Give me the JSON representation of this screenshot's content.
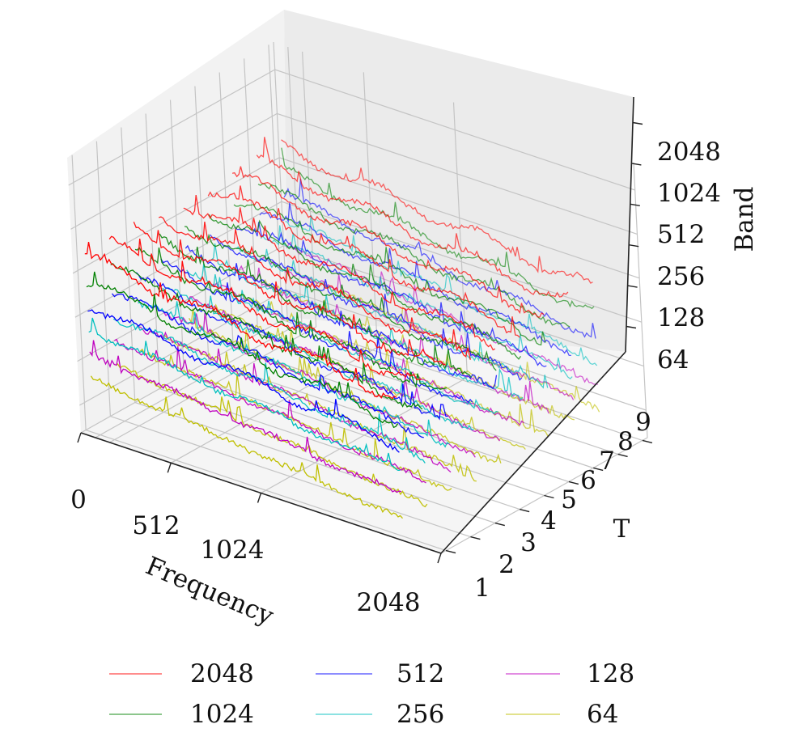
{
  "chart_data": {
    "type": "line",
    "projection": "3d",
    "title": "",
    "axes": {
      "x": {
        "label": "Frequency",
        "ticks": [
          "0",
          "512",
          "1024",
          "2048"
        ],
        "range": [
          0,
          2048
        ]
      },
      "y": {
        "label": "T",
        "ticks": [
          "1",
          "2",
          "3",
          "4",
          "5",
          "6",
          "7",
          "8",
          "9"
        ],
        "range": [
          1,
          9
        ]
      },
      "z": {
        "label": "Band",
        "ticks": [
          "64",
          "128",
          "256",
          "512",
          "1024",
          "2048"
        ]
      }
    },
    "grid": true,
    "legend": {
      "placement": "bottom",
      "columns": 3
    },
    "series": [
      {
        "name": "2048",
        "color": "#ff0000",
        "band_level": 5
      },
      {
        "name": "1024",
        "color": "#008000",
        "band_level": 4
      },
      {
        "name": "512",
        "color": "#0000ff",
        "band_level": 3
      },
      {
        "name": "256",
        "color": "#00bfbf",
        "band_level": 2
      },
      {
        "name": "128",
        "color": "#bf00bf",
        "band_level": 1
      },
      {
        "name": "64",
        "color": "#bfbf00",
        "band_level": 0
      }
    ],
    "time_steps": [
      1,
      2,
      3,
      4,
      5,
      6,
      7,
      8,
      9
    ]
  }
}
